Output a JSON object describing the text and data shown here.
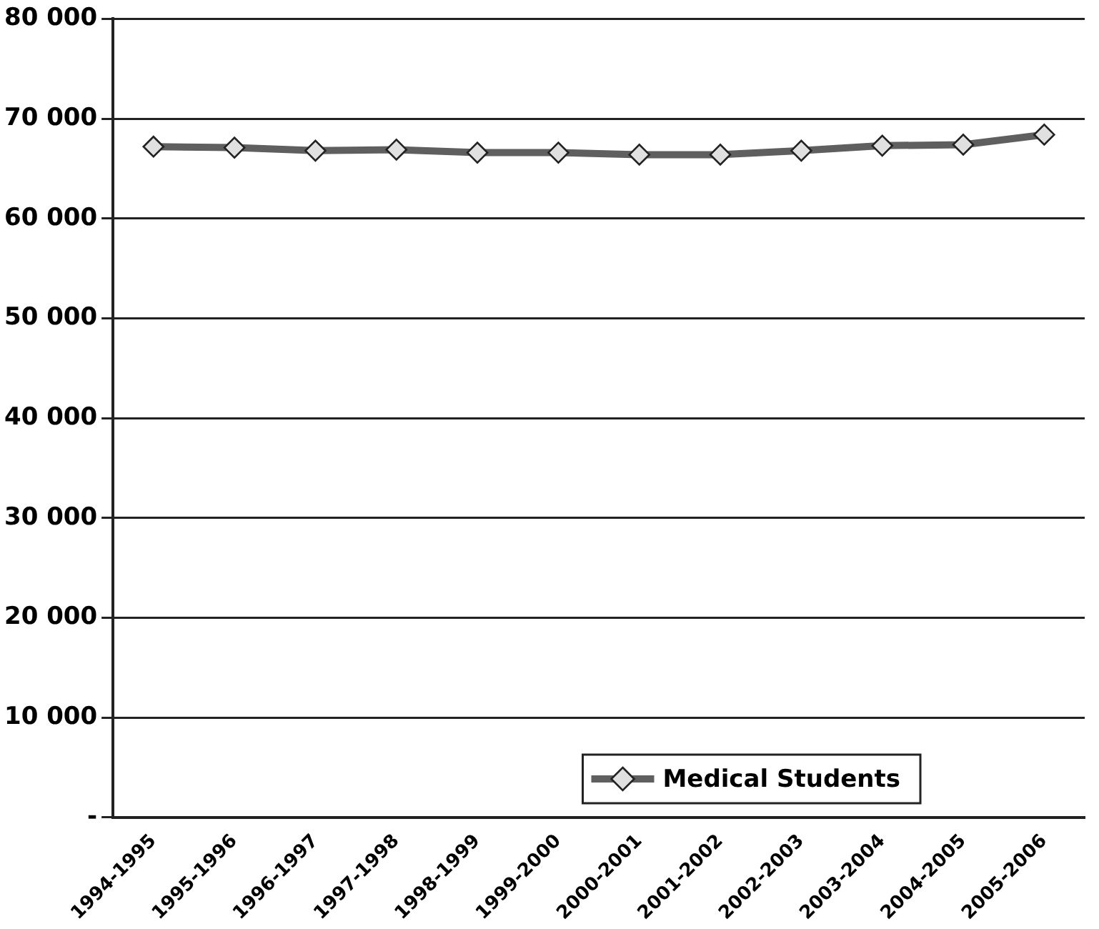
{
  "chart_data": {
    "type": "line",
    "categories": [
      "1994-1995",
      "1995-1996",
      "1996-1997",
      "1997-1998",
      "1998-1999",
      "1999-2000",
      "2000-2001",
      "2001-2002",
      "2002-2003",
      "2003-2004",
      "2004-2005",
      "2005-2006"
    ],
    "series": [
      {
        "name": "Medical Students",
        "color": "#5f5f5f",
        "values": [
          67200,
          67100,
          66800,
          66900,
          66600,
          66600,
          66400,
          66400,
          66800,
          67300,
          67400,
          68400
        ]
      }
    ],
    "ylim": [
      0,
      80000
    ],
    "yticks": [
      {
        "value": 0,
        "label": "-"
      },
      {
        "value": 10000,
        "label": "10 000"
      },
      {
        "value": 20000,
        "label": "20 000"
      },
      {
        "value": 30000,
        "label": "30 000"
      },
      {
        "value": 40000,
        "label": "40 000"
      },
      {
        "value": 50000,
        "label": "50 000"
      },
      {
        "value": 60000,
        "label": "60 000"
      },
      {
        "value": 70000,
        "label": "70 000"
      },
      {
        "value": 80000,
        "label": "80 000"
      }
    ],
    "grid": "y",
    "legend": "bottom right",
    "marker": "diamond",
    "line_style": "solid"
  }
}
